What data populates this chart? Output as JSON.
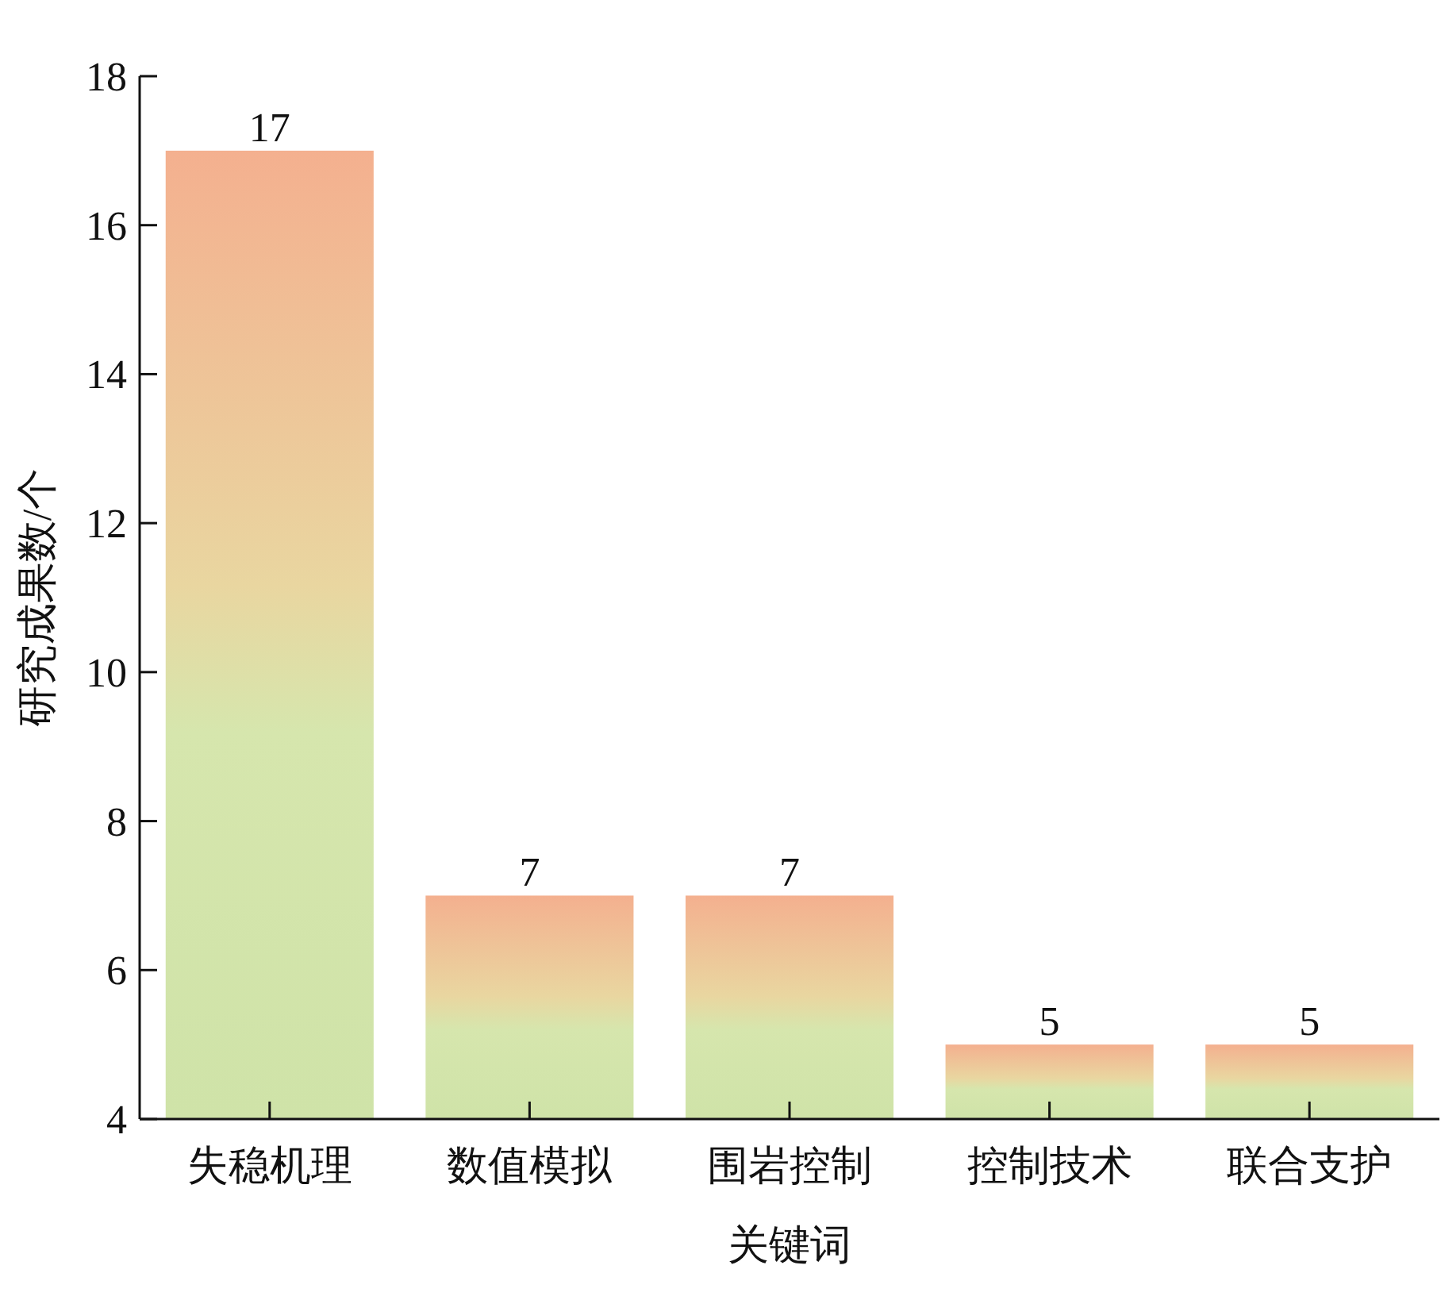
{
  "chart_data": {
    "type": "bar",
    "xlabel": "关键词",
    "ylabel": "研究成果数/个",
    "categories": [
      "失稳机理",
      "数值模拟",
      "围岩控制",
      "控制技术",
      "联合支护"
    ],
    "values": [
      17,
      7,
      7,
      5,
      5
    ],
    "color": "#f4b08f",
    "ylim": [
      4,
      18
    ],
    "yticks": [
      4,
      6,
      8,
      10,
      12,
      14,
      16,
      18
    ],
    "data_labels": true
  }
}
